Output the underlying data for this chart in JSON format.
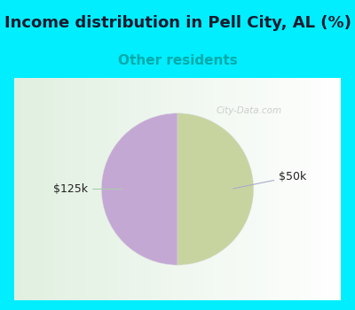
{
  "title": "Income distribution in Pell City, AL (%)",
  "subtitle": "Other residents",
  "title_color": "#1a1a2e",
  "subtitle_color": "#00aaaa",
  "top_bg_color": "#00eeff",
  "chart_border_color": "#00eeff",
  "watermark": "City-Data.com",
  "slices": [
    50.0,
    50.0
  ],
  "labels": [
    "$50k",
    "$125k"
  ],
  "colors": [
    "#c4a8d4",
    "#c8d4a0"
  ],
  "startangle": 90,
  "label_fontsize": 9,
  "title_fontsize": 13,
  "subtitle_fontsize": 11
}
